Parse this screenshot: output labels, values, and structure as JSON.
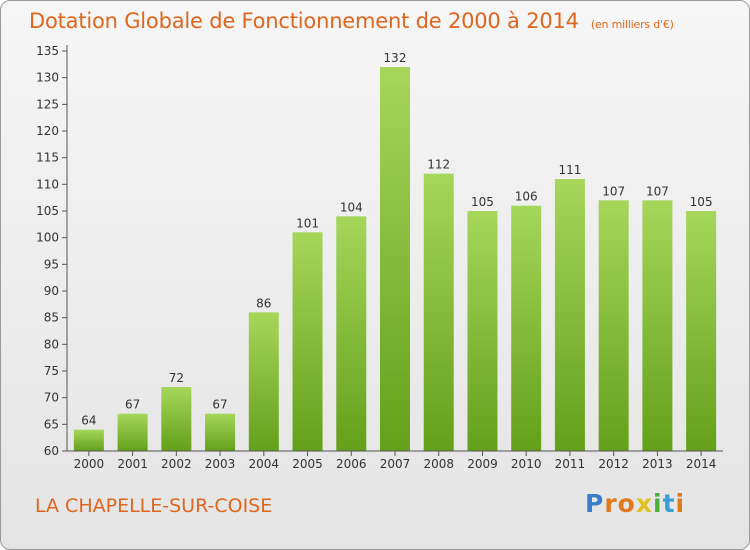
{
  "header": {
    "title": "Dotation Globale de Fonctionnement de 2000 à 2014",
    "subtitle": "(en milliers d'€)"
  },
  "footer": {
    "commune": "LA CHAPELLE-SUR-COISE",
    "logo_letters": [
      "P",
      "r",
      "o",
      "x",
      "i",
      "t",
      "i"
    ],
    "logo_colors": [
      "#3a7ec9",
      "#e07a1d",
      "#e07a1d",
      "#e0c11d",
      "#4caf3a",
      "#3a9fd4",
      "#e07a1d"
    ]
  },
  "colors": {
    "bar_light": "#a6d65a",
    "bar_dark": "#64a01a",
    "text": "#333333",
    "accent": "#e0651d"
  },
  "chart_data": {
    "type": "bar",
    "title": "Dotation Globale de Fonctionnement de 2000 à 2014",
    "subtitle": "(en milliers d'€)",
    "xlabel": "",
    "ylabel": "",
    "ylim": [
      60,
      135
    ],
    "yticks": [
      60,
      65,
      70,
      75,
      80,
      85,
      90,
      95,
      100,
      105,
      110,
      115,
      120,
      125,
      130,
      135
    ],
    "grid": false,
    "categories": [
      "2000",
      "2001",
      "2002",
      "2003",
      "2004",
      "2005",
      "2006",
      "2007",
      "2008",
      "2009",
      "2010",
      "2011",
      "2012",
      "2013",
      "2014"
    ],
    "values": [
      64,
      67,
      72,
      67,
      86,
      101,
      104,
      132,
      112,
      105,
      106,
      111,
      107,
      107,
      105
    ]
  }
}
